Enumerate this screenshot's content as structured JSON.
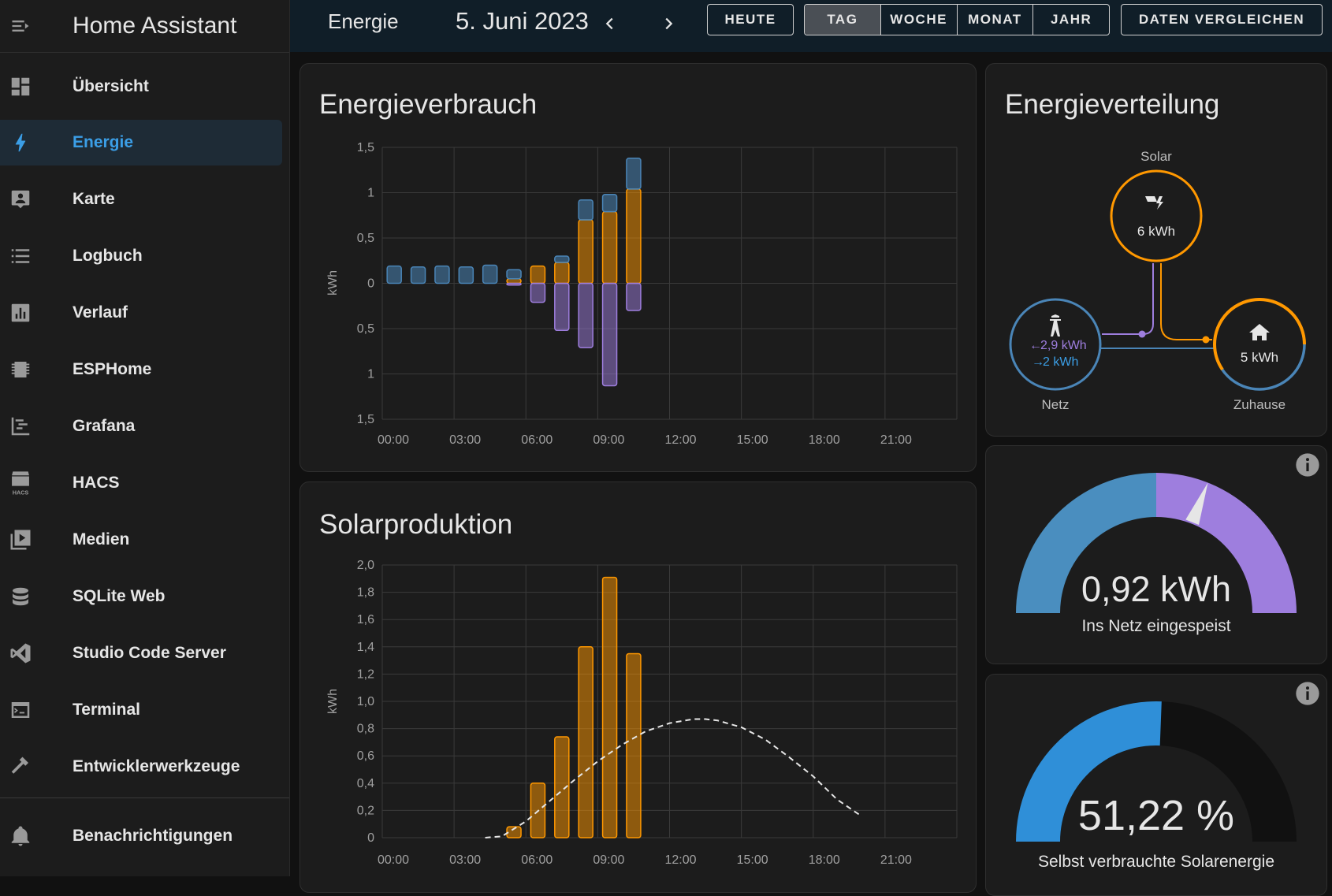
{
  "app": {
    "title": "Home Assistant"
  },
  "sidebar": {
    "items": [
      {
        "label": "Übersicht",
        "icon": "dashboard-icon"
      },
      {
        "label": "Energie",
        "icon": "lightning-bolt-icon",
        "active": true
      },
      {
        "label": "Karte",
        "icon": "map-account-icon"
      },
      {
        "label": "Logbuch",
        "icon": "list-icon"
      },
      {
        "label": "Verlauf",
        "icon": "chart-box-icon"
      },
      {
        "label": "ESPHome",
        "icon": "chip-icon"
      },
      {
        "label": "Grafana",
        "icon": "chart-gantt-icon"
      },
      {
        "label": "HACS",
        "icon": "hacs-icon"
      },
      {
        "label": "Medien",
        "icon": "play-box-multiple-icon"
      },
      {
        "label": "SQLite Web",
        "icon": "database-icon"
      },
      {
        "label": "Studio Code Server",
        "icon": "vscode-icon"
      },
      {
        "label": "Terminal",
        "icon": "console-icon"
      },
      {
        "label": "Entwicklerwerkzeuge",
        "icon": "hammer-icon"
      }
    ],
    "notifications_label": "Benachrichtigungen",
    "hacs_icon_text": "HACS"
  },
  "header": {
    "title": "Energie",
    "date": "5. Juni 2023",
    "today_label": "HEUTE",
    "periods": [
      "TAG",
      "WOCHE",
      "MONAT",
      "JAHR"
    ],
    "selected_period": "TAG",
    "compare_label": "DATEN VERGLEICHEN"
  },
  "energy_usage": {
    "title": "Energieverbrauch",
    "chart_data": {
      "type": "bar",
      "ylabel": "kWh",
      "y_tick_labels": [
        "1,5",
        "1",
        "0,5",
        "0",
        "0,5",
        "1",
        "1,5"
      ],
      "ylim": [
        -1.5,
        1.5
      ],
      "x_tick_labels": [
        "00:00",
        "03:00",
        "06:00",
        "09:00",
        "12:00",
        "15:00",
        "18:00",
        "21:00"
      ],
      "hours": [
        0,
        1,
        2,
        3,
        4,
        5,
        6,
        7,
        8,
        9,
        10
      ],
      "series": [
        {
          "name": "grid",
          "color": "#4a85b7",
          "values": [
            0.19,
            0.18,
            0.19,
            0.18,
            0.2,
            0.1,
            0,
            0.07,
            0.22,
            0.19,
            0.34
          ]
        },
        {
          "name": "solar",
          "color": "#ff9800",
          "values": [
            0,
            0,
            0,
            0,
            0,
            0.05,
            0.19,
            0.23,
            0.7,
            0.79,
            1.04
          ]
        },
        {
          "name": "return",
          "color": "#9e7ede",
          "values": [
            0,
            0,
            0,
            0,
            0,
            -0.02,
            -0.21,
            -0.52,
            -0.71,
            -1.13,
            -0.3
          ]
        }
      ],
      "grid": true
    }
  },
  "solar_production": {
    "title": "Solarproduktion",
    "chart_data": {
      "type": "bar",
      "ylabel": "kWh",
      "y_tick_labels": [
        "0",
        "0,2",
        "0,4",
        "0,6",
        "0,8",
        "1,0",
        "1,2",
        "1,4",
        "1,6",
        "1,8",
        "2,0"
      ],
      "ylim": [
        0,
        2.0
      ],
      "x_tick_labels": [
        "00:00",
        "03:00",
        "06:00",
        "09:00",
        "12:00",
        "15:00",
        "18:00",
        "21:00"
      ],
      "hours": [
        5,
        6,
        7,
        8,
        9,
        10
      ],
      "values": [
        0.08,
        0.4,
        0.74,
        1.4,
        1.91,
        1.35
      ],
      "forecast": {
        "x": [
          4.3,
          5.0,
          6.0,
          7.0,
          8.0,
          9.0,
          10.0,
          11.0,
          12.0,
          13.0,
          13.5,
          14.0,
          15.0,
          16.0,
          17.0,
          18.0,
          19.0,
          20.0
        ],
        "y": [
          0.0,
          0.01,
          0.12,
          0.27,
          0.42,
          0.56,
          0.68,
          0.78,
          0.84,
          0.87,
          0.87,
          0.86,
          0.81,
          0.72,
          0.59,
          0.45,
          0.28,
          0.16
        ]
      },
      "grid": true
    }
  },
  "distribution": {
    "title": "Energieverteilung",
    "solar_label": "Solar",
    "solar_value": "6 kWh",
    "grid_label": "Netz",
    "grid_in": "2,9 kWh",
    "grid_out": "2 kWh",
    "home_label": "Zuhause",
    "home_value": "5 kWh"
  },
  "gauge_return": {
    "value": "0,92 kWh",
    "label": "Ins Netz eingespeist",
    "needle_fraction": 0.62
  },
  "gauge_self": {
    "value": "51,22 %",
    "label": "Selbst verbrauchte Solarenergie",
    "fraction": 0.5122
  },
  "colors": {
    "grid": "#4a85b7",
    "solar": "#ff9800",
    "return": "#9e7ede",
    "self": "#2f8fd8",
    "accent": "#3b9ee6"
  }
}
